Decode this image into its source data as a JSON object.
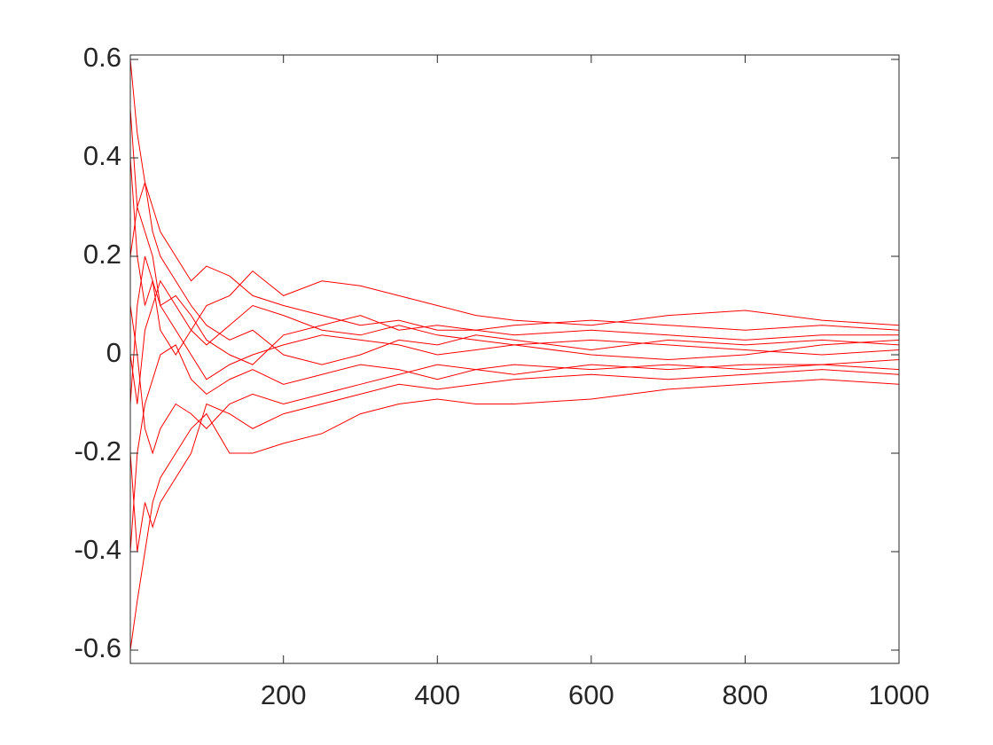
{
  "chart_data": {
    "type": "line",
    "color": "#ff0000",
    "x": [
      1,
      10,
      20,
      30,
      40,
      60,
      80,
      100,
      130,
      160,
      200,
      250,
      300,
      350,
      400,
      450,
      500,
      600,
      700,
      800,
      900,
      1000
    ],
    "series": [
      {
        "values": [
          0.6,
          0.45,
          0.35,
          0.3,
          0.25,
          0.2,
          0.15,
          0.18,
          0.16,
          0.12,
          0.1,
          0.08,
          0.06,
          0.07,
          0.05,
          0.05,
          0.06,
          0.07,
          0.06,
          0.05,
          0.06,
          0.05
        ]
      },
      {
        "values": [
          -0.6,
          -0.5,
          -0.4,
          -0.3,
          -0.25,
          -0.2,
          -0.15,
          -0.12,
          -0.2,
          -0.2,
          -0.18,
          -0.16,
          -0.12,
          -0.1,
          -0.09,
          -0.1,
          -0.1,
          -0.09,
          -0.07,
          -0.06,
          -0.05,
          -0.06
        ]
      },
      {
        "values": [
          0.4,
          0.2,
          0.1,
          0.15,
          0.05,
          0.0,
          0.05,
          0.1,
          0.12,
          0.17,
          0.12,
          0.15,
          0.14,
          0.12,
          0.1,
          0.08,
          0.07,
          0.06,
          0.08,
          0.09,
          0.07,
          0.06
        ]
      },
      {
        "values": [
          -0.2,
          -0.4,
          -0.3,
          -0.35,
          -0.3,
          -0.25,
          -0.2,
          -0.1,
          -0.12,
          -0.15,
          -0.12,
          -0.1,
          -0.08,
          -0.06,
          -0.07,
          -0.06,
          -0.05,
          -0.04,
          -0.05,
          -0.04,
          -0.03,
          -0.04
        ]
      },
      {
        "values": [
          0.2,
          0.3,
          0.25,
          0.2,
          0.1,
          0.05,
          0.0,
          -0.05,
          -0.02,
          0.0,
          0.02,
          0.04,
          0.03,
          0.02,
          0.0,
          0.01,
          0.02,
          0.03,
          0.02,
          0.01,
          0.0,
          0.01
        ]
      },
      {
        "values": [
          0.0,
          -0.1,
          0.05,
          0.1,
          0.15,
          0.1,
          0.05,
          0.02,
          0.06,
          0.1,
          0.08,
          0.05,
          0.04,
          0.06,
          0.04,
          0.03,
          0.02,
          0.0,
          -0.01,
          0.0,
          0.02,
          0.03
        ]
      },
      {
        "values": [
          -0.4,
          -0.2,
          -0.1,
          -0.05,
          0.0,
          0.02,
          -0.05,
          -0.08,
          -0.05,
          -0.03,
          -0.06,
          -0.04,
          -0.02,
          -0.03,
          -0.05,
          -0.03,
          -0.02,
          -0.03,
          -0.02,
          -0.03,
          -0.02,
          -0.01
        ]
      },
      {
        "values": [
          0.5,
          0.3,
          0.35,
          0.25,
          0.2,
          0.15,
          0.1,
          0.06,
          0.03,
          0.05,
          0.0,
          -0.02,
          0.0,
          0.03,
          0.02,
          0.04,
          0.03,
          0.01,
          0.03,
          0.02,
          0.03,
          0.02
        ]
      },
      {
        "values": [
          0.1,
          0.0,
          -0.15,
          -0.2,
          -0.15,
          -0.1,
          -0.12,
          -0.15,
          -0.1,
          -0.08,
          -0.1,
          -0.08,
          -0.06,
          -0.04,
          -0.02,
          -0.03,
          -0.04,
          -0.02,
          -0.03,
          -0.02,
          -0.02,
          -0.03
        ]
      },
      {
        "values": [
          -0.1,
          0.1,
          0.2,
          0.15,
          0.1,
          0.12,
          0.08,
          0.03,
          0.0,
          -0.02,
          0.04,
          0.06,
          0.08,
          0.05,
          0.06,
          0.05,
          0.04,
          0.05,
          0.04,
          0.03,
          0.04,
          0.04
        ]
      }
    ],
    "xlim": [
      1,
      1000
    ],
    "xticks": [
      200,
      400,
      600,
      800,
      1000
    ],
    "ylim": [
      -0.627,
      0.609
    ],
    "yticks": [
      -0.6,
      -0.4,
      -0.2,
      0,
      0.2,
      0.4,
      0.6
    ]
  }
}
